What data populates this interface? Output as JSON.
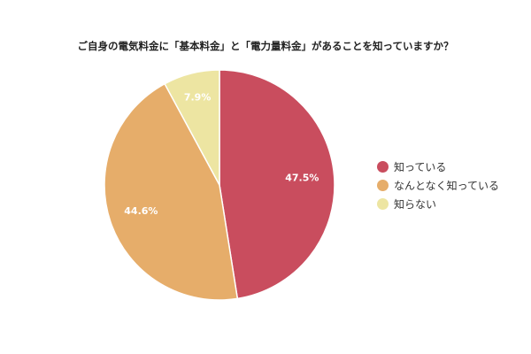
{
  "chart_data": {
    "type": "pie",
    "title": "ご自身の電気料金に「基本料金」と「電力量料金」があることを知っていますか？",
    "slices": [
      {
        "name": "知っている",
        "value": 47.5,
        "label": "47.5%",
        "color": "#c94d5e"
      },
      {
        "name": "なんとなく知っている",
        "value": 44.6,
        "label": "44.6%",
        "color": "#e6ad6a"
      },
      {
        "name": "知らない",
        "value": 7.9,
        "label": "7.9%",
        "color": "#ede5a2"
      }
    ],
    "start_angle_deg": 0,
    "direction": "clockwise",
    "legend_position": "right"
  }
}
